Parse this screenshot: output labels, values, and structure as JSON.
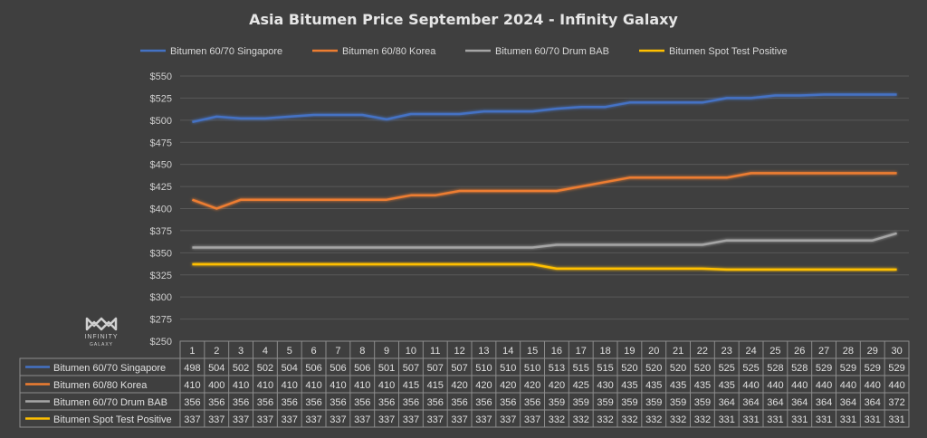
{
  "chart_data": {
    "type": "line",
    "title": "Asia Bitumen Price September 2024 - Infinity Galaxy",
    "categories": [
      "1",
      "2",
      "3",
      "4",
      "5",
      "6",
      "7",
      "8",
      "9",
      "10",
      "11",
      "12",
      "13",
      "14",
      "15",
      "16",
      "17",
      "18",
      "19",
      "20",
      "21",
      "22",
      "23",
      "24",
      "25",
      "26",
      "27",
      "28",
      "29",
      "30"
    ],
    "ylim": [
      250,
      550
    ],
    "yticks": [
      "$250",
      "$275",
      "$300",
      "$325",
      "$350",
      "$375",
      "$400",
      "$425",
      "$450",
      "$475",
      "$500",
      "$525",
      "$550"
    ],
    "ytick_values": [
      250,
      275,
      300,
      325,
      350,
      375,
      400,
      425,
      450,
      475,
      500,
      525,
      550
    ],
    "grid": true,
    "legend_position": "top",
    "series": [
      {
        "name": "Bitumen 60/70 Singapore",
        "color": "#4472c4",
        "values": [
          498,
          504,
          502,
          502,
          504,
          506,
          506,
          506,
          501,
          507,
          507,
          507,
          510,
          510,
          510,
          513,
          515,
          515,
          520,
          520,
          520,
          520,
          525,
          525,
          528,
          528,
          529,
          529,
          529,
          529
        ]
      },
      {
        "name": "Bitumen 60/80 Korea",
        "color": "#ed7d31",
        "values": [
          410,
          400,
          410,
          410,
          410,
          410,
          410,
          410,
          410,
          415,
          415,
          420,
          420,
          420,
          420,
          420,
          425,
          430,
          435,
          435,
          435,
          435,
          435,
          440,
          440,
          440,
          440,
          440,
          440,
          440
        ]
      },
      {
        "name": "Bitumen 60/70 Drum BAB",
        "color": "#a5a5a5",
        "values": [
          356,
          356,
          356,
          356,
          356,
          356,
          356,
          356,
          356,
          356,
          356,
          356,
          356,
          356,
          356,
          359,
          359,
          359,
          359,
          359,
          359,
          359,
          364,
          364,
          364,
          364,
          364,
          364,
          364,
          372
        ]
      },
      {
        "name": "Bitumen Spot Test Positive",
        "color": "#ffc000",
        "values": [
          337,
          337,
          337,
          337,
          337,
          337,
          337,
          337,
          337,
          337,
          337,
          337,
          337,
          337,
          337,
          332,
          332,
          332,
          332,
          332,
          332,
          332,
          331,
          331,
          331,
          331,
          331,
          331,
          331,
          331
        ]
      }
    ]
  },
  "logo": {
    "text1": "INFINITY",
    "text2": "GALAXY"
  }
}
